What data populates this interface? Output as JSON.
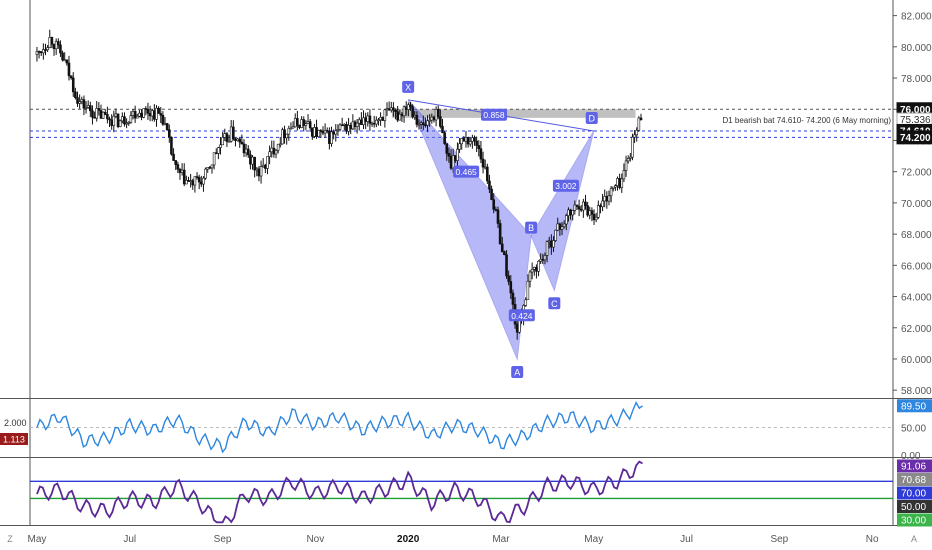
{
  "chart_data": [
    {
      "type": "candlestick",
      "title": "",
      "annotation": "D1 bearish bat 74.610- 74.200 (6 May morning)",
      "x_axis": {
        "ticks": [
          "May",
          "Jul",
          "Sep",
          "Nov",
          "2020",
          "Mar",
          "May",
          "Jul",
          "Sep",
          "No"
        ]
      },
      "y_axis": {
        "side": "right",
        "range": [
          57.5,
          83
        ],
        "ticks": [
          82,
          80,
          78,
          76,
          74,
          72,
          70,
          68,
          66,
          64,
          62,
          60,
          58
        ]
      },
      "price_tags": [
        {
          "value": 76.0,
          "label": "76.000",
          "style": "dark"
        },
        {
          "value": 75.336,
          "label": "75.336",
          "style": "light"
        },
        {
          "value": 74.61,
          "label": "74.610",
          "style": "dark"
        },
        {
          "value": 74.2,
          "label": "74.200",
          "style": "dark"
        }
      ],
      "levels": [
        {
          "value": 76.0,
          "color": "#555555"
        },
        {
          "value": 74.61,
          "color": "#2e3bd6"
        },
        {
          "value": 74.2,
          "color": "#2e3bd6"
        }
      ],
      "zone": {
        "from": 76.0,
        "to": 75.45
      },
      "pattern": {
        "points": [
          {
            "label": "X",
            "month": 8.0,
            "price": 76.6
          },
          {
            "label": "A",
            "month": 10.35,
            "price": 60.0
          },
          {
            "label": "B",
            "month": 10.65,
            "price": 67.9
          },
          {
            "label": "C",
            "month": 11.15,
            "price": 64.4
          },
          {
            "label": "D",
            "month": 12.0,
            "price": 74.61
          }
        ],
        "ratios": [
          {
            "label": "0.858",
            "month": 9.85,
            "price": 75.65
          },
          {
            "label": "0.465",
            "month": 9.25,
            "price": 72.0
          },
          {
            "label": "0.424",
            "month": 10.45,
            "price": 62.8
          },
          {
            "label": "3.002",
            "month": 11.4,
            "price": 71.1
          }
        ]
      },
      "series": [
        {
          "name": "close",
          "months": [
            0.0,
            0.3,
            0.6,
            0.9,
            1.2,
            1.5,
            1.8,
            2.1,
            2.4,
            2.7,
            3.0,
            3.3,
            3.6,
            3.9,
            4.2,
            4.5,
            4.8,
            5.1,
            5.4,
            5.7,
            6.0,
            6.3,
            6.6,
            6.9,
            7.2,
            7.5,
            7.8,
            8.0,
            8.3,
            8.6,
            8.9,
            9.2,
            9.5,
            9.8,
            10.1,
            10.35,
            10.65,
            10.9,
            11.15,
            11.4,
            11.7,
            12.0,
            12.3,
            12.6,
            12.9,
            13.05
          ],
          "values": [
            79.5,
            80.6,
            79.0,
            76.5,
            75.8,
            75.5,
            75.2,
            75.8,
            75.9,
            75.6,
            72.0,
            71.2,
            71.5,
            73.5,
            74.5,
            73.2,
            71.8,
            73.5,
            74.8,
            75.2,
            74.5,
            74.2,
            74.8,
            75.0,
            75.2,
            75.7,
            75.6,
            76.5,
            74.8,
            75.8,
            72.5,
            74.2,
            73.8,
            70.5,
            66.0,
            61.8,
            65.5,
            66.5,
            68.0,
            69.0,
            70.0,
            69.2,
            70.5,
            71.5,
            74.5,
            75.9
          ]
        }
      ]
    },
    {
      "type": "line",
      "title": "",
      "y_axis": {
        "side": "right",
        "range": [
          0,
          100
        ],
        "ticks": [
          50.0,
          0.0
        ]
      },
      "left_tags": [
        {
          "value": 2.0,
          "label": "2.000"
        },
        {
          "value": 1.113,
          "label": "1.113"
        }
      ],
      "last_value": {
        "value": 89.5,
        "label": "89.50",
        "color": "#2e86de"
      },
      "series": [
        {
          "name": "",
          "months": [
            0.0,
            0.5,
            1.0,
            1.5,
            2.0,
            2.5,
            3.0,
            3.5,
            4.0,
            4.5,
            5.0,
            5.5,
            6.0,
            6.5,
            7.0,
            7.5,
            8.0,
            8.5,
            9.0,
            9.5,
            10.0,
            10.5,
            11.0,
            11.5,
            12.0,
            12.5,
            13.05
          ],
          "values": [
            50,
            70,
            25,
            30,
            55,
            45,
            65,
            30,
            15,
            60,
            40,
            75,
            55,
            70,
            45,
            60,
            65,
            35,
            55,
            45,
            20,
            35,
            60,
            70,
            50,
            65,
            89.5
          ]
        }
      ]
    },
    {
      "type": "line",
      "title": "",
      "y_axis": {
        "side": "right",
        "ticks": [
          91.06,
          70.68,
          70.0,
          50.0,
          30.0
        ]
      },
      "value_tags": [
        {
          "value": 91.06,
          "label": "91.06",
          "bg": "#6a2ea8",
          "fg": "#ffffff"
        },
        {
          "value": 70.68,
          "label": "70.68",
          "bg": "#8a8a8a",
          "fg": "#ffffff"
        },
        {
          "value": 70.0,
          "label": "70.00",
          "bg": "#2e3bd6",
          "fg": "#ffffff"
        },
        {
          "value": 50.0,
          "label": "50.00",
          "bg": "#333333",
          "fg": "#ffffff"
        },
        {
          "value": 30.0,
          "label": "30.00",
          "bg": "#3bb54a",
          "fg": "#ffffff"
        }
      ],
      "levels": [
        {
          "value": 70,
          "color": "#2e3bd6"
        },
        {
          "value": 50,
          "color": "#1f9e36"
        }
      ],
      "series": [
        {
          "name": "",
          "months": [
            0.0,
            0.5,
            1.0,
            1.5,
            2.0,
            2.5,
            3.0,
            3.5,
            4.0,
            4.5,
            5.0,
            5.5,
            6.0,
            6.5,
            7.0,
            7.5,
            8.0,
            8.5,
            9.0,
            9.5,
            10.0,
            10.5,
            11.0,
            11.5,
            12.0,
            12.5,
            13.05
          ],
          "values": [
            55,
            60,
            40,
            35,
            50,
            45,
            65,
            45,
            15,
            55,
            50,
            70,
            55,
            65,
            50,
            60,
            72,
            45,
            60,
            50,
            25,
            40,
            65,
            70,
            60,
            70,
            91.06
          ]
        }
      ]
    }
  ],
  "toolbar": {
    "left_icon": "Z",
    "right_icon": "A"
  }
}
